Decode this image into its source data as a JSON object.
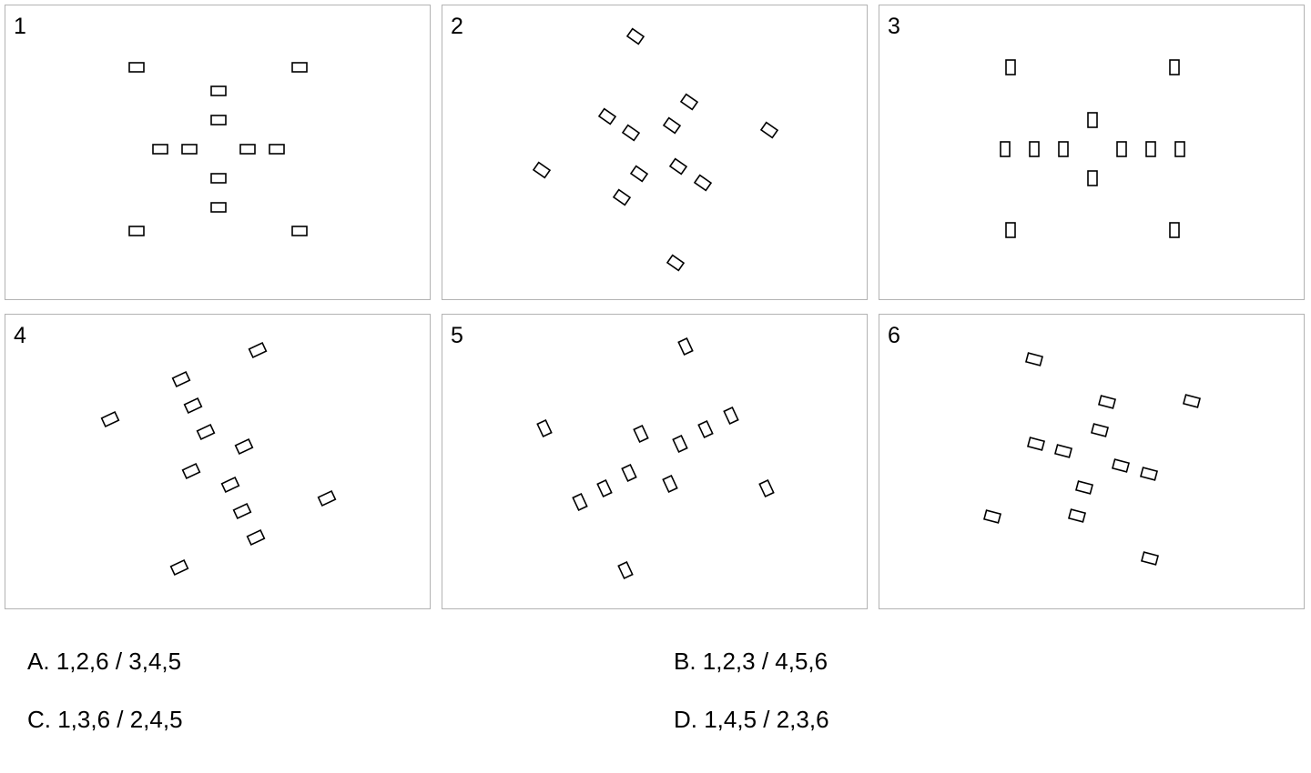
{
  "panels": [
    {
      "label": "1"
    },
    {
      "label": "2"
    },
    {
      "label": "3"
    },
    {
      "label": "4"
    },
    {
      "label": "5"
    },
    {
      "label": "6"
    }
  ],
  "options": [
    {
      "text": "A. 1,2,6 / 3,4,5"
    },
    {
      "text": "B. 1,2,3 / 4,5,6"
    },
    {
      "text": "C. 1,3,6 / 2,4,5"
    },
    {
      "text": "D. 1,4,5 / 2,3,6"
    }
  ]
}
